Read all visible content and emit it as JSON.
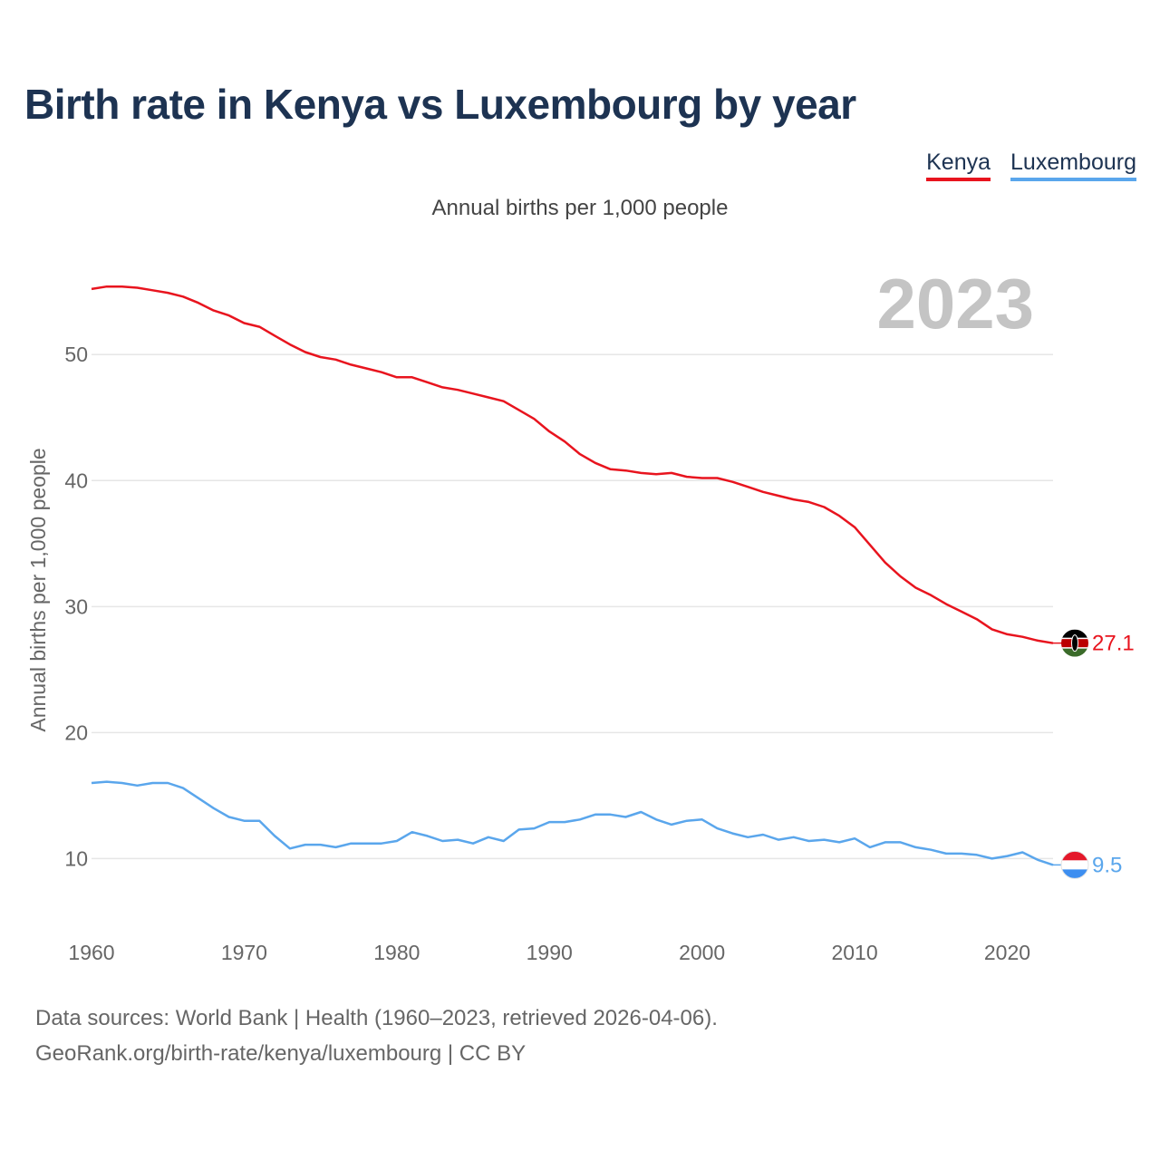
{
  "title": "Birth rate in Kenya vs Luxembourg by year",
  "subtitle": "Annual births per 1,000 people",
  "footer": {
    "line1": "Data sources: World Bank | Health (1960–2023, retrieved 2026-04-06).",
    "line2": "GeoRank.org/birth-rate/kenya/luxembourg | CC BY"
  },
  "chart_data": {
    "type": "line",
    "title": "Birth rate in Kenya vs Luxembourg by year",
    "xlabel": "",
    "ylabel": "Annual births per 1,000 people",
    "year_label": "2023",
    "xlim": [
      1960,
      2023
    ],
    "ylim": [
      5.5,
      58
    ],
    "x_ticks": [
      1960,
      1970,
      1980,
      1990,
      2000,
      2010,
      2020
    ],
    "y_ticks": [
      10,
      20,
      30,
      40,
      50
    ],
    "grid": true,
    "legend_position": "top-right",
    "x": [
      1960,
      1961,
      1962,
      1963,
      1964,
      1965,
      1966,
      1967,
      1968,
      1969,
      1970,
      1971,
      1972,
      1973,
      1974,
      1975,
      1976,
      1977,
      1978,
      1979,
      1980,
      1981,
      1982,
      1983,
      1984,
      1985,
      1986,
      1987,
      1988,
      1989,
      1990,
      1991,
      1992,
      1993,
      1994,
      1995,
      1996,
      1997,
      1998,
      1999,
      2000,
      2001,
      2002,
      2003,
      2004,
      2005,
      2006,
      2007,
      2008,
      2009,
      2010,
      2011,
      2012,
      2013,
      2014,
      2015,
      2016,
      2017,
      2018,
      2019,
      2020,
      2021,
      2022,
      2023
    ],
    "series": [
      {
        "name": "Kenya",
        "color": "#e8141e",
        "end_label": "27.1",
        "values": [
          55.2,
          55.4,
          55.4,
          55.3,
          55.1,
          54.9,
          54.6,
          54.1,
          53.5,
          53.1,
          52.5,
          52.2,
          51.5,
          50.8,
          50.2,
          49.8,
          49.6,
          49.2,
          48.9,
          48.6,
          48.2,
          48.2,
          47.8,
          47.4,
          47.2,
          46.9,
          46.6,
          46.3,
          45.6,
          44.9,
          43.9,
          43.1,
          42.1,
          41.4,
          40.9,
          40.8,
          40.6,
          40.5,
          40.6,
          40.3,
          40.2,
          40.2,
          39.9,
          39.5,
          39.1,
          38.8,
          38.5,
          38.3,
          37.9,
          37.2,
          36.3,
          34.9,
          33.5,
          32.4,
          31.5,
          30.9,
          30.2,
          29.6,
          29.0,
          28.2,
          27.8,
          27.6,
          27.3,
          27.1
        ]
      },
      {
        "name": "Luxembourg",
        "color": "#5aa6ec",
        "end_label": "9.5",
        "values": [
          16.0,
          16.1,
          16.0,
          15.8,
          16.0,
          16.0,
          15.6,
          14.8,
          14.0,
          13.3,
          13.0,
          13.0,
          11.8,
          10.8,
          11.1,
          11.1,
          10.9,
          11.2,
          11.2,
          11.2,
          11.4,
          12.1,
          11.8,
          11.4,
          11.5,
          11.2,
          11.7,
          11.4,
          12.3,
          12.4,
          12.9,
          12.9,
          13.1,
          13.5,
          13.5,
          13.3,
          13.7,
          13.1,
          12.7,
          13.0,
          13.1,
          12.4,
          12.0,
          11.7,
          11.9,
          11.5,
          11.7,
          11.4,
          11.5,
          11.3,
          11.6,
          10.9,
          11.3,
          11.3,
          10.9,
          10.7,
          10.4,
          10.4,
          10.3,
          10.0,
          10.2,
          10.5,
          9.9,
          9.5
        ]
      }
    ]
  }
}
